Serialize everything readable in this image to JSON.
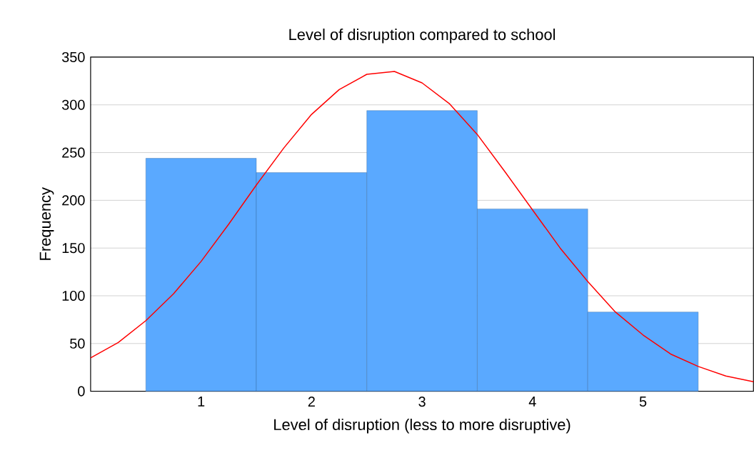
{
  "chart_data": {
    "type": "histogram",
    "title": "Level of disruption compared to school",
    "xlabel": "Level of disruption (less to more disruptive)",
    "ylabel": "Frequency",
    "bins": [
      0.5,
      1.5,
      2.5,
      3.5,
      4.5,
      5.5
    ],
    "values": [
      244,
      229,
      294,
      191,
      83
    ],
    "color": "#5aa9ff",
    "series": [
      {
        "type": "line",
        "color": "#ff0000",
        "x": [
          0,
          0.25,
          0.5,
          0.75,
          1,
          1.25,
          1.5,
          1.75,
          2,
          2.25,
          2.5,
          2.75,
          3,
          3.25,
          3.5,
          3.75,
          4,
          4.25,
          4.5,
          4.75,
          5,
          5.25,
          5.5,
          5.75,
          6
        ],
        "values": [
          35,
          51,
          74,
          102,
          136,
          175,
          216,
          255,
          290,
          316,
          332,
          335,
          323,
          301,
          269,
          230,
          190,
          150,
          115,
          83,
          59,
          39,
          26,
          16,
          10
        ]
      }
    ],
    "xlim": [
      0,
      6
    ],
    "ylim": [
      0,
      350
    ],
    "xticks": [
      1,
      2,
      3,
      4,
      5
    ],
    "yticks": [
      0,
      50,
      100,
      150,
      200,
      250,
      300,
      350
    ],
    "grid": "y"
  }
}
